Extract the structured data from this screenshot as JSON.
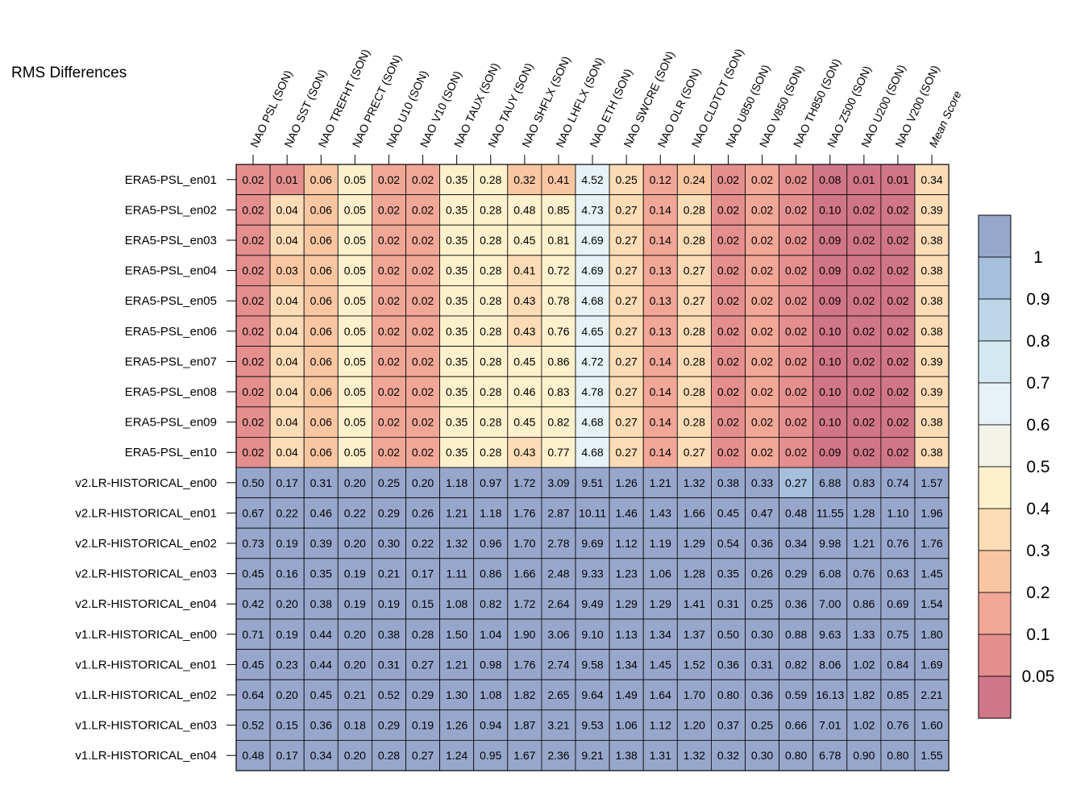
{
  "chart_data": {
    "type": "heatmap",
    "title": "RMS Differences",
    "columns": [
      "NAO PSL (SON)",
      "NAO SST (SON)",
      "NAO TREFHT (SON)",
      "NAO PRECT (SON)",
      "NAO U10 (SON)",
      "NAO V10 (SON)",
      "NAO TAUX (SON)",
      "NAO TAUY (SON)",
      "NAO SHFLX (SON)",
      "NAO LHFLX (SON)",
      "NAO ETH (SON)",
      "NAO SWCRE (SON)",
      "NAO OLR (SON)",
      "NAO CLDTOT (SON)",
      "NAO U850 (SON)",
      "NAO V850 (SON)",
      "NAO TH850 (SON)",
      "NAO Z500 (SON)",
      "NAO U200 (SON)",
      "NAO V200 (SON)",
      "Mean Score"
    ],
    "rows": [
      "ERA5-PSL_en01",
      "ERA5-PSL_en02",
      "ERA5-PSL_en03",
      "ERA5-PSL_en04",
      "ERA5-PSL_en05",
      "ERA5-PSL_en06",
      "ERA5-PSL_en07",
      "ERA5-PSL_en08",
      "ERA5-PSL_en09",
      "ERA5-PSL_en10",
      "v2.LR-HISTORICAL_en00",
      "v2.LR-HISTORICAL_en01",
      "v2.LR-HISTORICAL_en02",
      "v2.LR-HISTORICAL_en03",
      "v2.LR-HISTORICAL_en04",
      "v1.LR-HISTORICAL_en00",
      "v1.LR-HISTORICAL_en01",
      "v1.LR-HISTORICAL_en02",
      "v1.LR-HISTORICAL_en03",
      "v1.LR-HISTORICAL_en04"
    ],
    "values": [
      [
        "0.02",
        "0.01",
        "0.06",
        "0.05",
        "0.02",
        "0.02",
        "0.35",
        "0.28",
        "0.32",
        "0.41",
        "4.52",
        "0.25",
        "0.12",
        "0.24",
        "0.02",
        "0.02",
        "0.02",
        "0.08",
        "0.01",
        "0.01",
        "0.34"
      ],
      [
        "0.02",
        "0.04",
        "0.06",
        "0.05",
        "0.02",
        "0.02",
        "0.35",
        "0.28",
        "0.48",
        "0.85",
        "4.73",
        "0.27",
        "0.14",
        "0.28",
        "0.02",
        "0.02",
        "0.02",
        "0.10",
        "0.02",
        "0.02",
        "0.39"
      ],
      [
        "0.02",
        "0.04",
        "0.06",
        "0.05",
        "0.02",
        "0.02",
        "0.35",
        "0.28",
        "0.45",
        "0.81",
        "4.69",
        "0.27",
        "0.14",
        "0.28",
        "0.02",
        "0.02",
        "0.02",
        "0.09",
        "0.02",
        "0.02",
        "0.38"
      ],
      [
        "0.02",
        "0.03",
        "0.06",
        "0.05",
        "0.02",
        "0.02",
        "0.35",
        "0.28",
        "0.41",
        "0.72",
        "4.69",
        "0.27",
        "0.13",
        "0.27",
        "0.02",
        "0.02",
        "0.02",
        "0.09",
        "0.02",
        "0.02",
        "0.38"
      ],
      [
        "0.02",
        "0.04",
        "0.06",
        "0.05",
        "0.02",
        "0.02",
        "0.35",
        "0.28",
        "0.43",
        "0.78",
        "4.68",
        "0.27",
        "0.13",
        "0.27",
        "0.02",
        "0.02",
        "0.02",
        "0.09",
        "0.02",
        "0.02",
        "0.38"
      ],
      [
        "0.02",
        "0.04",
        "0.06",
        "0.05",
        "0.02",
        "0.02",
        "0.35",
        "0.28",
        "0.43",
        "0.76",
        "4.65",
        "0.27",
        "0.13",
        "0.28",
        "0.02",
        "0.02",
        "0.02",
        "0.10",
        "0.02",
        "0.02",
        "0.38"
      ],
      [
        "0.02",
        "0.04",
        "0.06",
        "0.05",
        "0.02",
        "0.02",
        "0.35",
        "0.28",
        "0.45",
        "0.86",
        "4.72",
        "0.27",
        "0.14",
        "0.28",
        "0.02",
        "0.02",
        "0.02",
        "0.10",
        "0.02",
        "0.02",
        "0.39"
      ],
      [
        "0.02",
        "0.04",
        "0.06",
        "0.05",
        "0.02",
        "0.02",
        "0.35",
        "0.28",
        "0.46",
        "0.83",
        "4.78",
        "0.27",
        "0.14",
        "0.28",
        "0.02",
        "0.02",
        "0.02",
        "0.10",
        "0.02",
        "0.02",
        "0.39"
      ],
      [
        "0.02",
        "0.04",
        "0.06",
        "0.05",
        "0.02",
        "0.02",
        "0.35",
        "0.28",
        "0.45",
        "0.82",
        "4.68",
        "0.27",
        "0.14",
        "0.28",
        "0.02",
        "0.02",
        "0.02",
        "0.10",
        "0.02",
        "0.02",
        "0.38"
      ],
      [
        "0.02",
        "0.04",
        "0.06",
        "0.05",
        "0.02",
        "0.02",
        "0.35",
        "0.28",
        "0.43",
        "0.77",
        "4.68",
        "0.27",
        "0.14",
        "0.27",
        "0.02",
        "0.02",
        "0.02",
        "0.09",
        "0.02",
        "0.02",
        "0.38"
      ],
      [
        "0.50",
        "0.17",
        "0.31",
        "0.20",
        "0.25",
        "0.20",
        "1.18",
        "0.97",
        "1.72",
        "3.09",
        "9.51",
        "1.26",
        "1.21",
        "1.32",
        "0.38",
        "0.33",
        "0.27",
        "6.88",
        "0.83",
        "0.74",
        "1.57"
      ],
      [
        "0.67",
        "0.22",
        "0.46",
        "0.22",
        "0.29",
        "0.26",
        "1.21",
        "1.18",
        "1.76",
        "2.87",
        "10.11",
        "1.46",
        "1.43",
        "1.66",
        "0.45",
        "0.47",
        "0.48",
        "11.55",
        "1.28",
        "1.10",
        "1.96"
      ],
      [
        "0.73",
        "0.19",
        "0.39",
        "0.20",
        "0.30",
        "0.22",
        "1.32",
        "0.96",
        "1.70",
        "2.78",
        "9.69",
        "1.12",
        "1.19",
        "1.29",
        "0.54",
        "0.36",
        "0.34",
        "9.98",
        "1.21",
        "0.76",
        "1.76"
      ],
      [
        "0.45",
        "0.16",
        "0.35",
        "0.19",
        "0.21",
        "0.17",
        "1.11",
        "0.86",
        "1.66",
        "2.48",
        "9.33",
        "1.23",
        "1.06",
        "1.28",
        "0.35",
        "0.26",
        "0.29",
        "6.08",
        "0.76",
        "0.63",
        "1.45"
      ],
      [
        "0.42",
        "0.20",
        "0.38",
        "0.19",
        "0.19",
        "0.15",
        "1.08",
        "0.82",
        "1.72",
        "2.64",
        "9.49",
        "1.29",
        "1.29",
        "1.41",
        "0.31",
        "0.25",
        "0.36",
        "7.00",
        "0.86",
        "0.69",
        "1.54"
      ],
      [
        "0.71",
        "0.19",
        "0.44",
        "0.20",
        "0.38",
        "0.28",
        "1.50",
        "1.04",
        "1.90",
        "3.06",
        "9.10",
        "1.13",
        "1.34",
        "1.37",
        "0.50",
        "0.30",
        "0.88",
        "9.63",
        "1.33",
        "0.75",
        "1.80"
      ],
      [
        "0.45",
        "0.23",
        "0.44",
        "0.20",
        "0.31",
        "0.27",
        "1.21",
        "0.98",
        "1.76",
        "2.74",
        "9.58",
        "1.34",
        "1.45",
        "1.52",
        "0.36",
        "0.31",
        "0.82",
        "8.06",
        "1.02",
        "0.84",
        "1.69"
      ],
      [
        "0.64",
        "0.20",
        "0.45",
        "0.21",
        "0.52",
        "0.29",
        "1.30",
        "1.08",
        "1.82",
        "2.65",
        "9.64",
        "1.49",
        "1.64",
        "1.70",
        "0.80",
        "0.36",
        "0.59",
        "16.13",
        "1.82",
        "0.85",
        "2.21"
      ],
      [
        "0.52",
        "0.15",
        "0.36",
        "0.18",
        "0.29",
        "0.19",
        "1.26",
        "0.94",
        "1.87",
        "3.21",
        "9.53",
        "1.06",
        "1.12",
        "1.20",
        "0.37",
        "0.25",
        "0.66",
        "7.01",
        "1.02",
        "0.76",
        "1.60"
      ],
      [
        "0.48",
        "0.17",
        "0.34",
        "0.20",
        "0.28",
        "0.27",
        "1.24",
        "0.95",
        "1.67",
        "2.36",
        "9.21",
        "1.38",
        "1.31",
        "1.32",
        "0.32",
        "0.30",
        "0.80",
        "6.78",
        "0.90",
        "0.80",
        "1.55"
      ]
    ],
    "colorbar": {
      "labels": [
        "1",
        "0.9",
        "0.8",
        "0.7",
        "0.6",
        "0.5",
        "0.4",
        "0.3",
        "0.2",
        "0.1",
        "0.05"
      ],
      "colors": [
        "#97a7cc",
        "#a6bfdc",
        "#bdd7e9",
        "#d4e8f1",
        "#e6f2f5",
        "#f2f2e8",
        "#fdf0cc",
        "#fcdcb6",
        "#f9c6a2",
        "#f1a797",
        "#e48f8e",
        "#d17688"
      ],
      "bins": [
        1.0,
        0.9,
        0.8,
        0.7,
        0.6,
        0.5,
        0.4,
        0.3,
        0.2,
        0.1,
        0.05
      ]
    }
  }
}
